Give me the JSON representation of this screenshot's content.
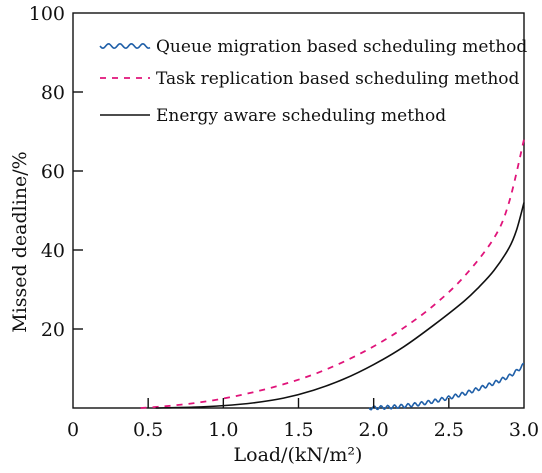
{
  "chart_data": {
    "type": "line",
    "title": "",
    "xlabel": "Load/(kN/m²)",
    "ylabel": "Missed deadline/%",
    "xlim": [
      0,
      3.0
    ],
    "ylim": [
      0,
      100
    ],
    "x_ticks": [
      0,
      0.5,
      1.0,
      1.5,
      2.0,
      2.5,
      3.0
    ],
    "x_tick_labels": [
      "0",
      "0.5",
      "1.0",
      "1.5",
      "2.0",
      "2.5",
      "3.0"
    ],
    "y_ticks": [
      20,
      40,
      60,
      80,
      100
    ],
    "y_tick_labels": [
      "20",
      "40",
      "60",
      "80",
      "100"
    ],
    "legend_position": "top-right",
    "series": [
      {
        "name": "Queue migration based scheduling method",
        "style": "wavy",
        "color": "#1f5fa8",
        "x": [
          1.97,
          2.1,
          2.2,
          2.3,
          2.4,
          2.5,
          2.6,
          2.7,
          2.8,
          2.9,
          2.95,
          3.0
        ],
        "y": [
          0,
          0.2,
          0.5,
          1.0,
          1.7,
          2.6,
          3.6,
          4.9,
          6.3,
          8.0,
          9.3,
          11.0
        ]
      },
      {
        "name": "Task replication based scheduling method",
        "style": "dashed",
        "color": "#e0147a",
        "x": [
          0.45,
          0.6,
          0.8,
          1.0,
          1.2,
          1.4,
          1.6,
          1.8,
          2.0,
          2.2,
          2.4,
          2.6,
          2.8,
          2.9,
          3.0
        ],
        "y": [
          0,
          0.4,
          1.2,
          2.4,
          4.0,
          6.0,
          8.5,
          11.7,
          15.6,
          20.3,
          26.0,
          33.2,
          43.0,
          52.0,
          68.0
        ]
      },
      {
        "name": "Energy aware scheduling method",
        "style": "solid",
        "color": "#111111",
        "x": [
          0.55,
          0.8,
          1.0,
          1.2,
          1.4,
          1.6,
          1.8,
          2.0,
          2.2,
          2.4,
          2.6,
          2.7,
          2.8,
          2.9,
          2.95,
          3.0
        ],
        "y": [
          0,
          0.2,
          0.6,
          1.3,
          2.5,
          4.5,
          7.3,
          11.0,
          15.5,
          21.0,
          27.0,
          30.6,
          34.8,
          40.5,
          45.0,
          52.0
        ]
      }
    ]
  }
}
